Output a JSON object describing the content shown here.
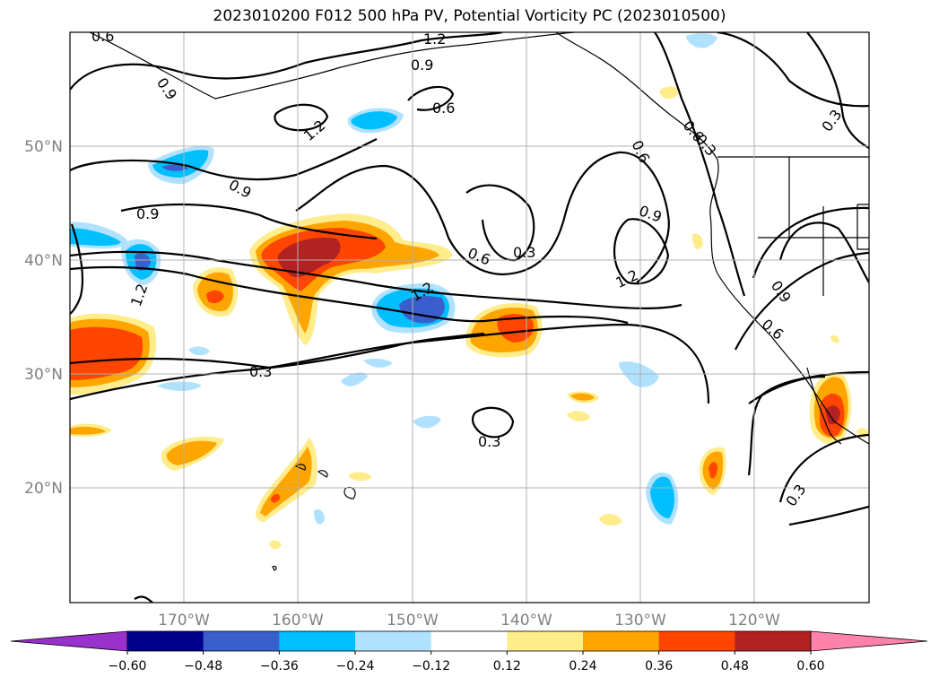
{
  "title": "2023010200 F012 500 hPa PV, Potential Vorticity PC (2023010500)",
  "latitude_labels": [
    "50°N",
    "40°N",
    "30°N",
    "20°N"
  ],
  "longitude_labels": [
    "170°W",
    "160°W",
    "150°W",
    "140°W",
    "130°W",
    "120°W"
  ],
  "contour_labels": [
    "0.6",
    "1.2",
    "0.9",
    "0.9",
    "1.2",
    "0.6",
    "0.9",
    "0.9",
    "1.2",
    "0.6",
    "0.3",
    "0.6",
    "0.9",
    "1.2",
    "1.2",
    "0.3",
    "0.3",
    "0.3",
    "0.9",
    "0.6",
    "0.3",
    "0.6",
    "0.3"
  ],
  "colorbar": {
    "tick_labels": [
      "−0.60",
      "−0.48",
      "−0.36",
      "−0.24",
      "−0.12",
      "0.12",
      "0.24",
      "0.36",
      "0.48",
      "0.60"
    ],
    "colors": [
      "#9932cc",
      "#00008b",
      "#3a5fcd",
      "#00bfff",
      "#b0e2ff",
      "#ffffff",
      "#ffec8b",
      "#ffa500",
      "#ff4500",
      "#b22222",
      "#ff82ab"
    ]
  }
}
